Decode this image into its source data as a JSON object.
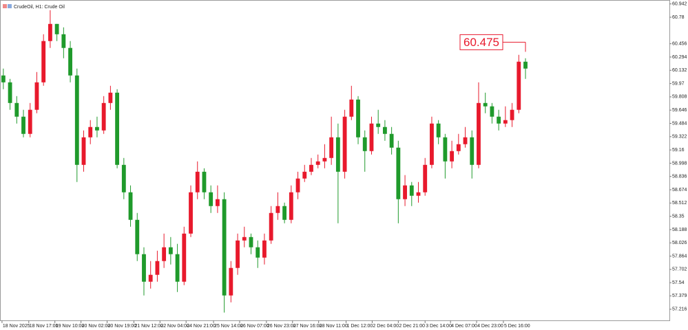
{
  "chart_data": {
    "type": "candlestick",
    "title": "CrudeOil, H1: Crude Oil",
    "up_color": "#e8192c",
    "down_color": "#1f9a2b",
    "open": [
      60.069,
      59.985,
      59.733,
      59.566,
      59.356,
      59.65,
      59.985,
      60.489,
      60.698,
      60.572,
      60.405,
      60.069,
      58.978,
      59.314,
      59.44,
      59.398,
      59.733,
      59.859,
      58.978,
      58.643,
      58.307,
      57.888,
      57.552,
      57.636,
      57.804,
      57.972,
      57.888,
      57.552,
      58.139,
      58.643,
      58.894,
      58.643,
      58.475,
      58.559,
      57.384,
      57.72,
      58.055,
      58.097,
      57.972,
      57.846,
      58.055,
      58.391,
      58.475,
      58.307,
      58.643,
      58.811,
      58.894,
      58.978,
      59.02,
      59.062,
      59.314,
      58.894,
      59.566,
      59.775,
      59.314,
      59.146,
      59.482,
      59.44,
      59.356,
      59.188,
      58.559,
      58.727,
      58.601,
      58.643,
      58.978,
      59.482,
      59.314,
      59.02,
      59.146,
      59.23,
      59.314,
      58.978,
      59.733,
      59.692,
      59.566,
      59.482,
      59.524,
      59.65,
      60.237
    ],
    "high": [
      60.153,
      60.027,
      59.817,
      59.65,
      59.733,
      60.111,
      60.572,
      60.866,
      60.698,
      60.656,
      60.489,
      60.153,
      59.398,
      59.524,
      59.566,
      59.817,
      59.943,
      59.901,
      59.062,
      58.727,
      58.391,
      57.972,
      57.804,
      57.93,
      58.139,
      58.097,
      58.014,
      58.223,
      58.727,
      59.02,
      58.936,
      58.727,
      58.727,
      58.643,
      57.804,
      58.139,
      58.223,
      58.139,
      58.055,
      58.139,
      58.475,
      58.643,
      58.517,
      58.727,
      58.894,
      58.978,
      59.062,
      59.104,
      59.23,
      59.566,
      59.482,
      59.65,
      59.943,
      59.817,
      59.398,
      59.566,
      59.65,
      59.524,
      59.44,
      59.272,
      58.853,
      58.769,
      58.769,
      59.062,
      59.566,
      59.524,
      59.356,
      59.272,
      59.356,
      59.44,
      59.398,
      59.985,
      59.859,
      59.733,
      59.65,
      59.692,
      59.733,
      60.321,
      60.279
    ],
    "low": [
      59.901,
      59.65,
      59.482,
      59.314,
      59.314,
      59.608,
      59.943,
      60.405,
      60.489,
      60.279,
      59.985,
      58.769,
      58.894,
      59.23,
      59.314,
      59.356,
      59.65,
      58.936,
      58.559,
      58.223,
      57.804,
      57.384,
      57.468,
      57.552,
      57.72,
      57.762,
      57.426,
      57.51,
      58.097,
      58.559,
      58.559,
      58.391,
      58.391,
      57.175,
      57.3,
      57.636,
      57.972,
      57.888,
      57.72,
      57.762,
      58.014,
      58.307,
      58.265,
      58.265,
      58.559,
      58.769,
      58.853,
      58.936,
      58.936,
      58.978,
      58.265,
      58.811,
      59.524,
      59.23,
      58.894,
      59.104,
      59.356,
      59.272,
      59.104,
      58.265,
      58.475,
      58.475,
      58.517,
      58.601,
      58.936,
      59.23,
      58.811,
      58.936,
      59.104,
      59.188,
      58.811,
      58.936,
      59.608,
      59.482,
      59.398,
      59.44,
      59.44,
      59.608,
      60.027
    ],
    "close": [
      59.985,
      59.733,
      59.566,
      59.356,
      59.65,
      59.985,
      60.489,
      60.698,
      60.572,
      60.405,
      60.069,
      58.978,
      59.314,
      59.44,
      59.398,
      59.733,
      59.859,
      58.978,
      58.643,
      58.307,
      57.888,
      57.552,
      57.636,
      57.804,
      57.972,
      57.888,
      57.552,
      58.139,
      58.643,
      58.894,
      58.643,
      58.475,
      58.559,
      57.384,
      57.72,
      58.055,
      58.097,
      57.972,
      57.846,
      58.055,
      58.391,
      58.475,
      58.307,
      58.643,
      58.811,
      58.894,
      58.978,
      59.02,
      59.062,
      59.314,
      58.894,
      59.566,
      59.775,
      59.314,
      59.146,
      59.482,
      59.44,
      59.356,
      59.188,
      58.559,
      58.727,
      58.601,
      58.643,
      58.978,
      59.482,
      59.314,
      59.02,
      59.146,
      59.23,
      59.314,
      58.978,
      59.733,
      59.692,
      59.566,
      59.482,
      59.524,
      59.65,
      60.237,
      60.153
    ],
    "xlim": [
      0,
      100
    ],
    "xticks": [
      {
        "value": 0.3,
        "label": "18 Nov 2025"
      },
      {
        "value": 4.3,
        "label": "18 Nov 17:00"
      },
      {
        "value": 8.2,
        "label": "19 Nov 10:00"
      },
      {
        "value": 12.1,
        "label": "20 Nov 02:00"
      },
      {
        "value": 16,
        "label": "20 Nov 19:00"
      },
      {
        "value": 20,
        "label": "21 Nov 12:00"
      },
      {
        "value": 23.9,
        "label": "22 Nov 04:00"
      },
      {
        "value": 27.8,
        "label": "24 Nov 21:00"
      },
      {
        "value": 31.9,
        "label": "25 Nov 14:00"
      },
      {
        "value": 35.8,
        "label": "26 Nov 07:00"
      },
      {
        "value": 39.8,
        "label": "26 Nov 23:00"
      },
      {
        "value": 43.7,
        "label": "27 Nov 16:00"
      },
      {
        "value": 47.6,
        "label": "28 Nov 11:00"
      },
      {
        "value": 51.7,
        "label": "1 Dec 12:00"
      },
      {
        "value": 55.6,
        "label": "2 Dec 04:00"
      },
      {
        "value": 59.5,
        "label": "2 Dec 21:00"
      },
      {
        "value": 63.5,
        "label": "3 Dec 14:00"
      },
      {
        "value": 67.3,
        "label": "4 Dec 07:00"
      },
      {
        "value": 71.2,
        "label": "4 Dec 23:00"
      },
      {
        "value": 75.2,
        "label": "5 Dec 16:00"
      }
    ],
    "ylim": [
      57.08,
      60.99
    ],
    "yticks": [
      60.942,
      60.78,
      60.456,
      60.294,
      60.132,
      59.97,
      59.808,
      59.646,
      59.484,
      59.322,
      59.16,
      58.998,
      58.836,
      58.674,
      58.512,
      58.35,
      58.188,
      58.026,
      57.864,
      57.702,
      57.54,
      57.379,
      57.216
    ],
    "price_label": 60.475
  }
}
